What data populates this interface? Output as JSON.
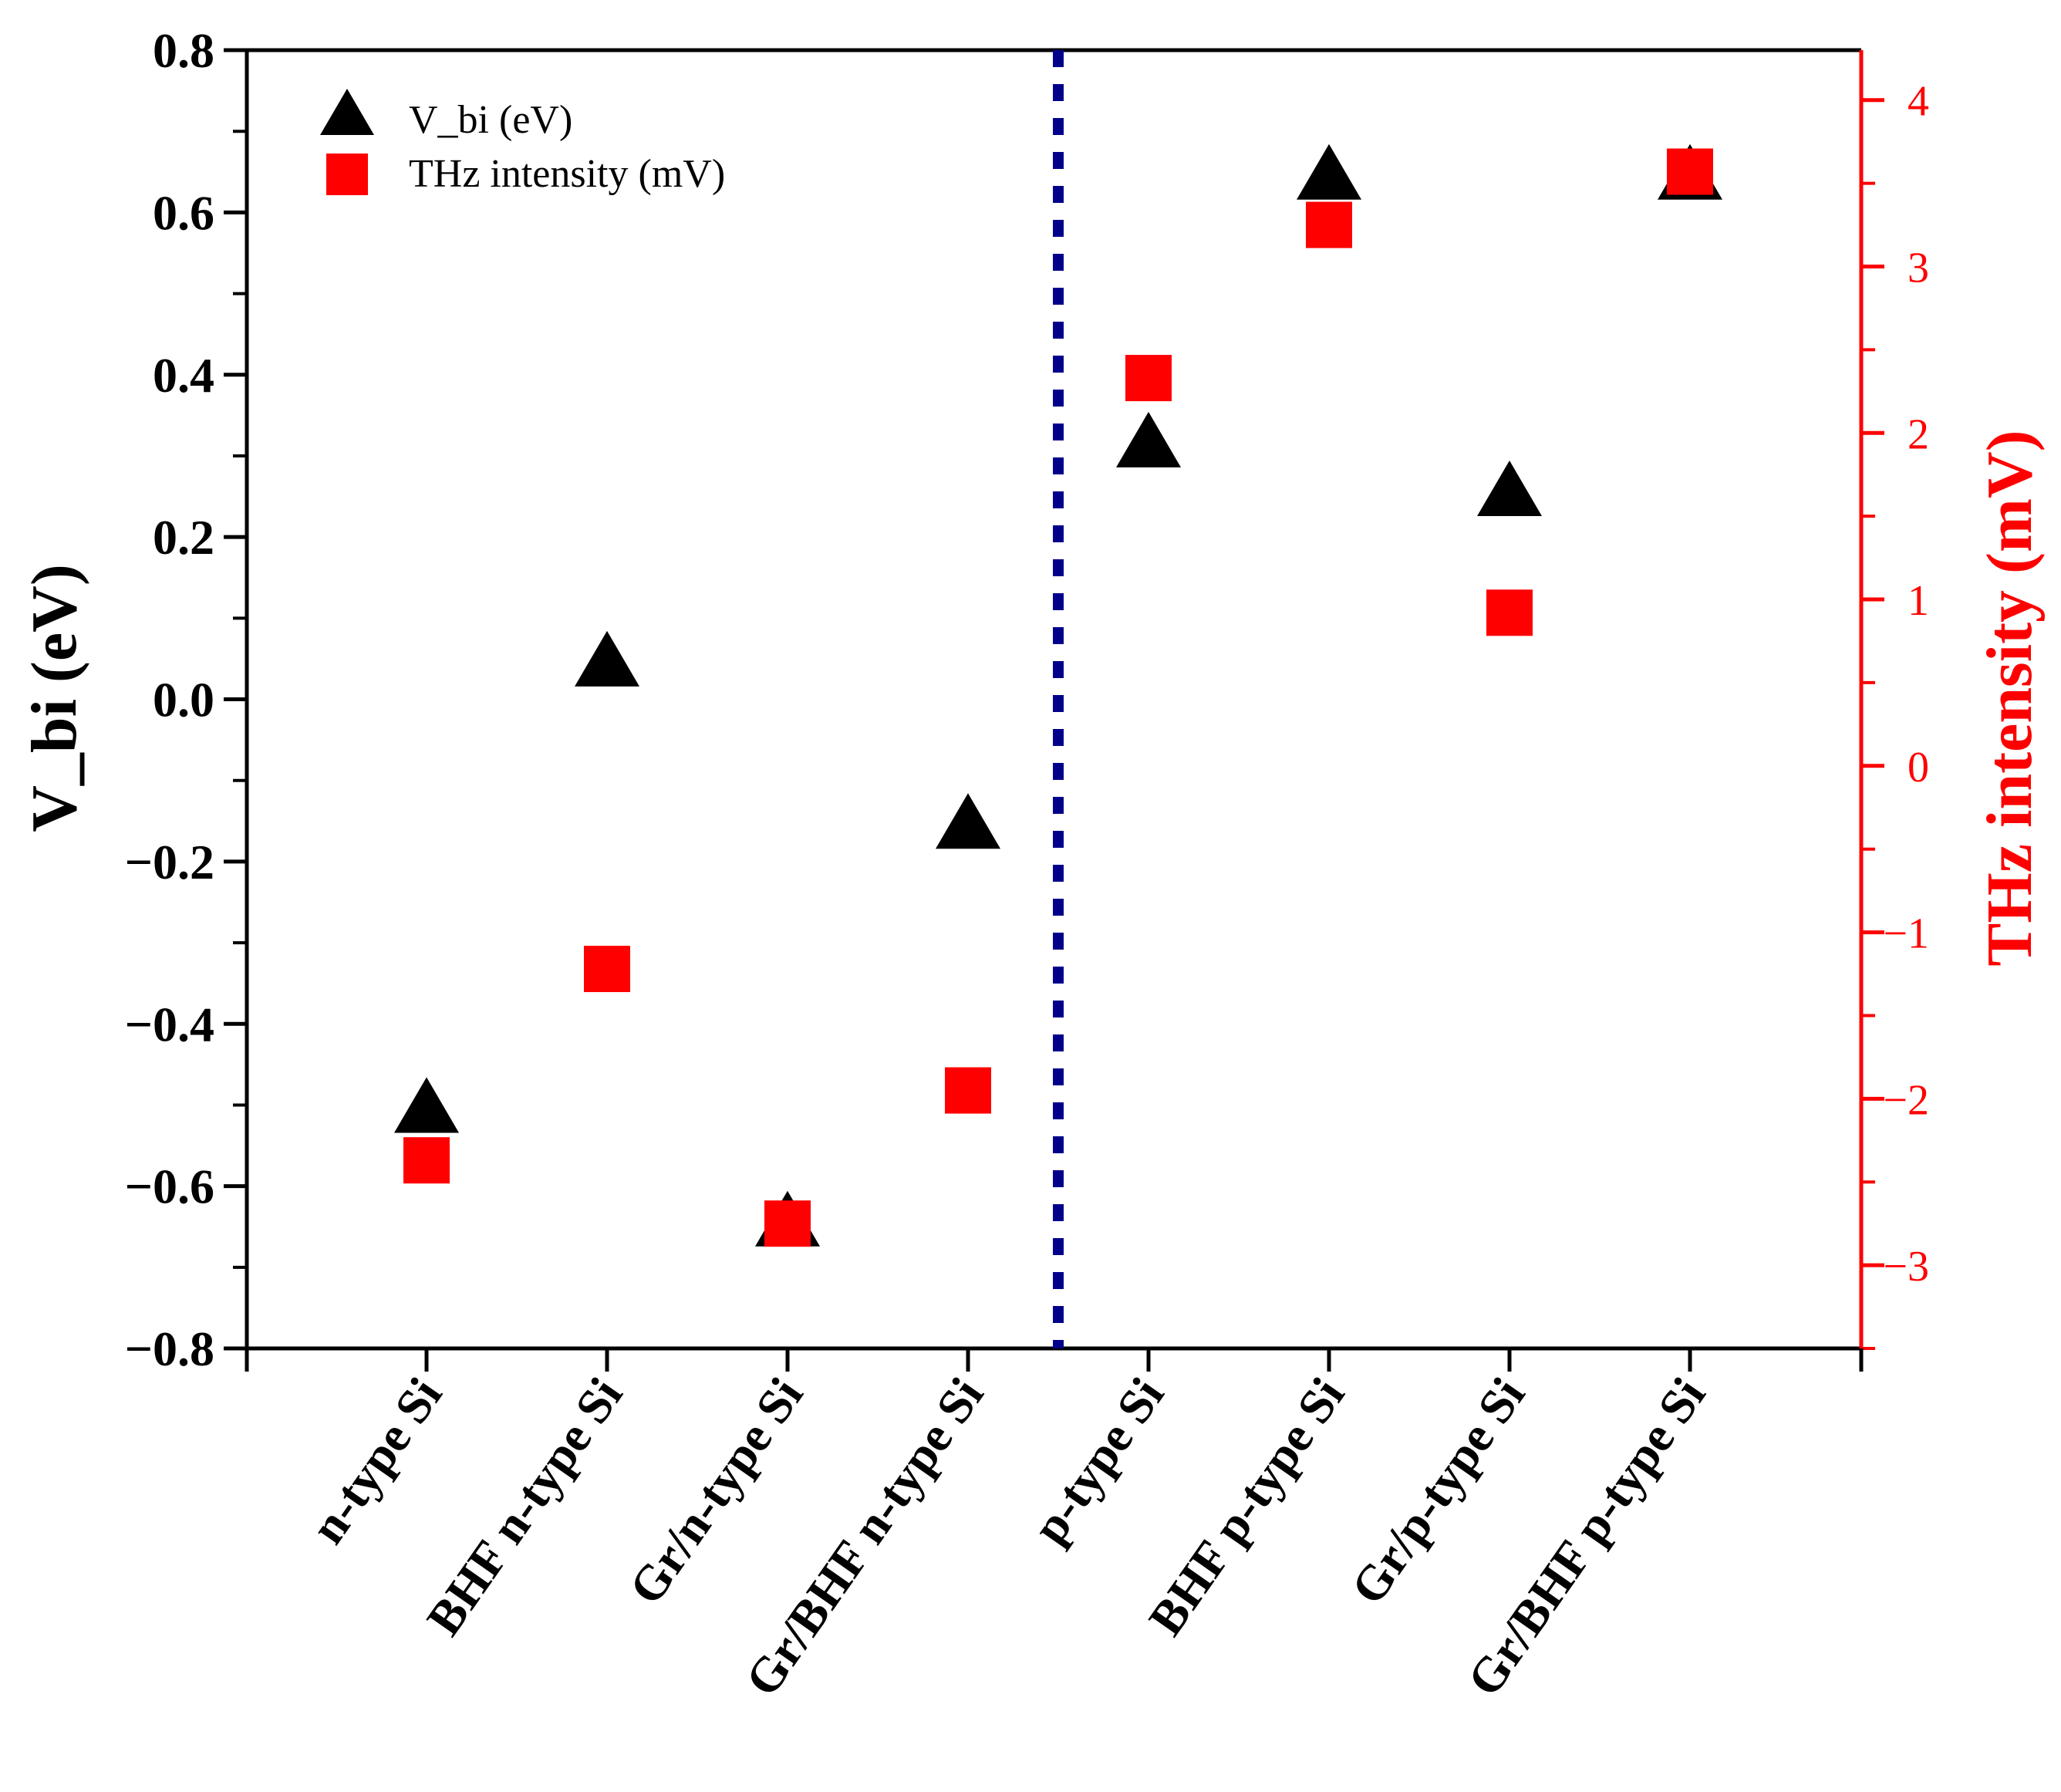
{
  "chart_data": {
    "type": "scatter",
    "categories": [
      "n-type Si",
      "BHF n-type Si",
      "Gr/n-type Si",
      "Gr/BHF n-type Si",
      "p-type Si",
      "BHF p-type Si",
      "Gr/p-type Si",
      "Gr/BHF p-type Si"
    ],
    "series": [
      {
        "name": "V_bi  (eV)",
        "axis": "left",
        "marker": "triangle",
        "color": "#000000",
        "values": [
          -0.5,
          0.05,
          -0.64,
          -0.15,
          0.32,
          0.65,
          0.26,
          0.65
        ]
      },
      {
        "name": "THz intensity (mV)",
        "axis": "right",
        "marker": "square",
        "color": "#ff0000",
        "values": [
          -2.37,
          -1.22,
          -2.75,
          -1.95,
          2.33,
          3.25,
          0.92,
          3.57
        ]
      }
    ],
    "ylabel_left": "V_bi  (eV)",
    "ylabel_right": "THz intensity (mV)",
    "ylim_left": [
      -0.8,
      0.8
    ],
    "ylim_right": [
      -3.5,
      4.3
    ],
    "yticks_left": [
      "0.8",
      "0.6",
      "0.4",
      "0.2",
      "0.0",
      "−0.2",
      "−0.4",
      "−0.6",
      "−0.8"
    ],
    "yticks_left_values": [
      0.8,
      0.6,
      0.4,
      0.2,
      0.0,
      -0.2,
      -0.4,
      -0.6,
      -0.8
    ],
    "yticks_right": [
      "4",
      "3",
      "2",
      "1",
      "0",
      "−1",
      "−2",
      "−3"
    ],
    "yticks_right_values": [
      4,
      3,
      2,
      1,
      0,
      -1,
      -2,
      -3
    ],
    "separator_after_category": 4,
    "separator_color": "#00008b",
    "legend_position": "top-left",
    "grid": false
  }
}
